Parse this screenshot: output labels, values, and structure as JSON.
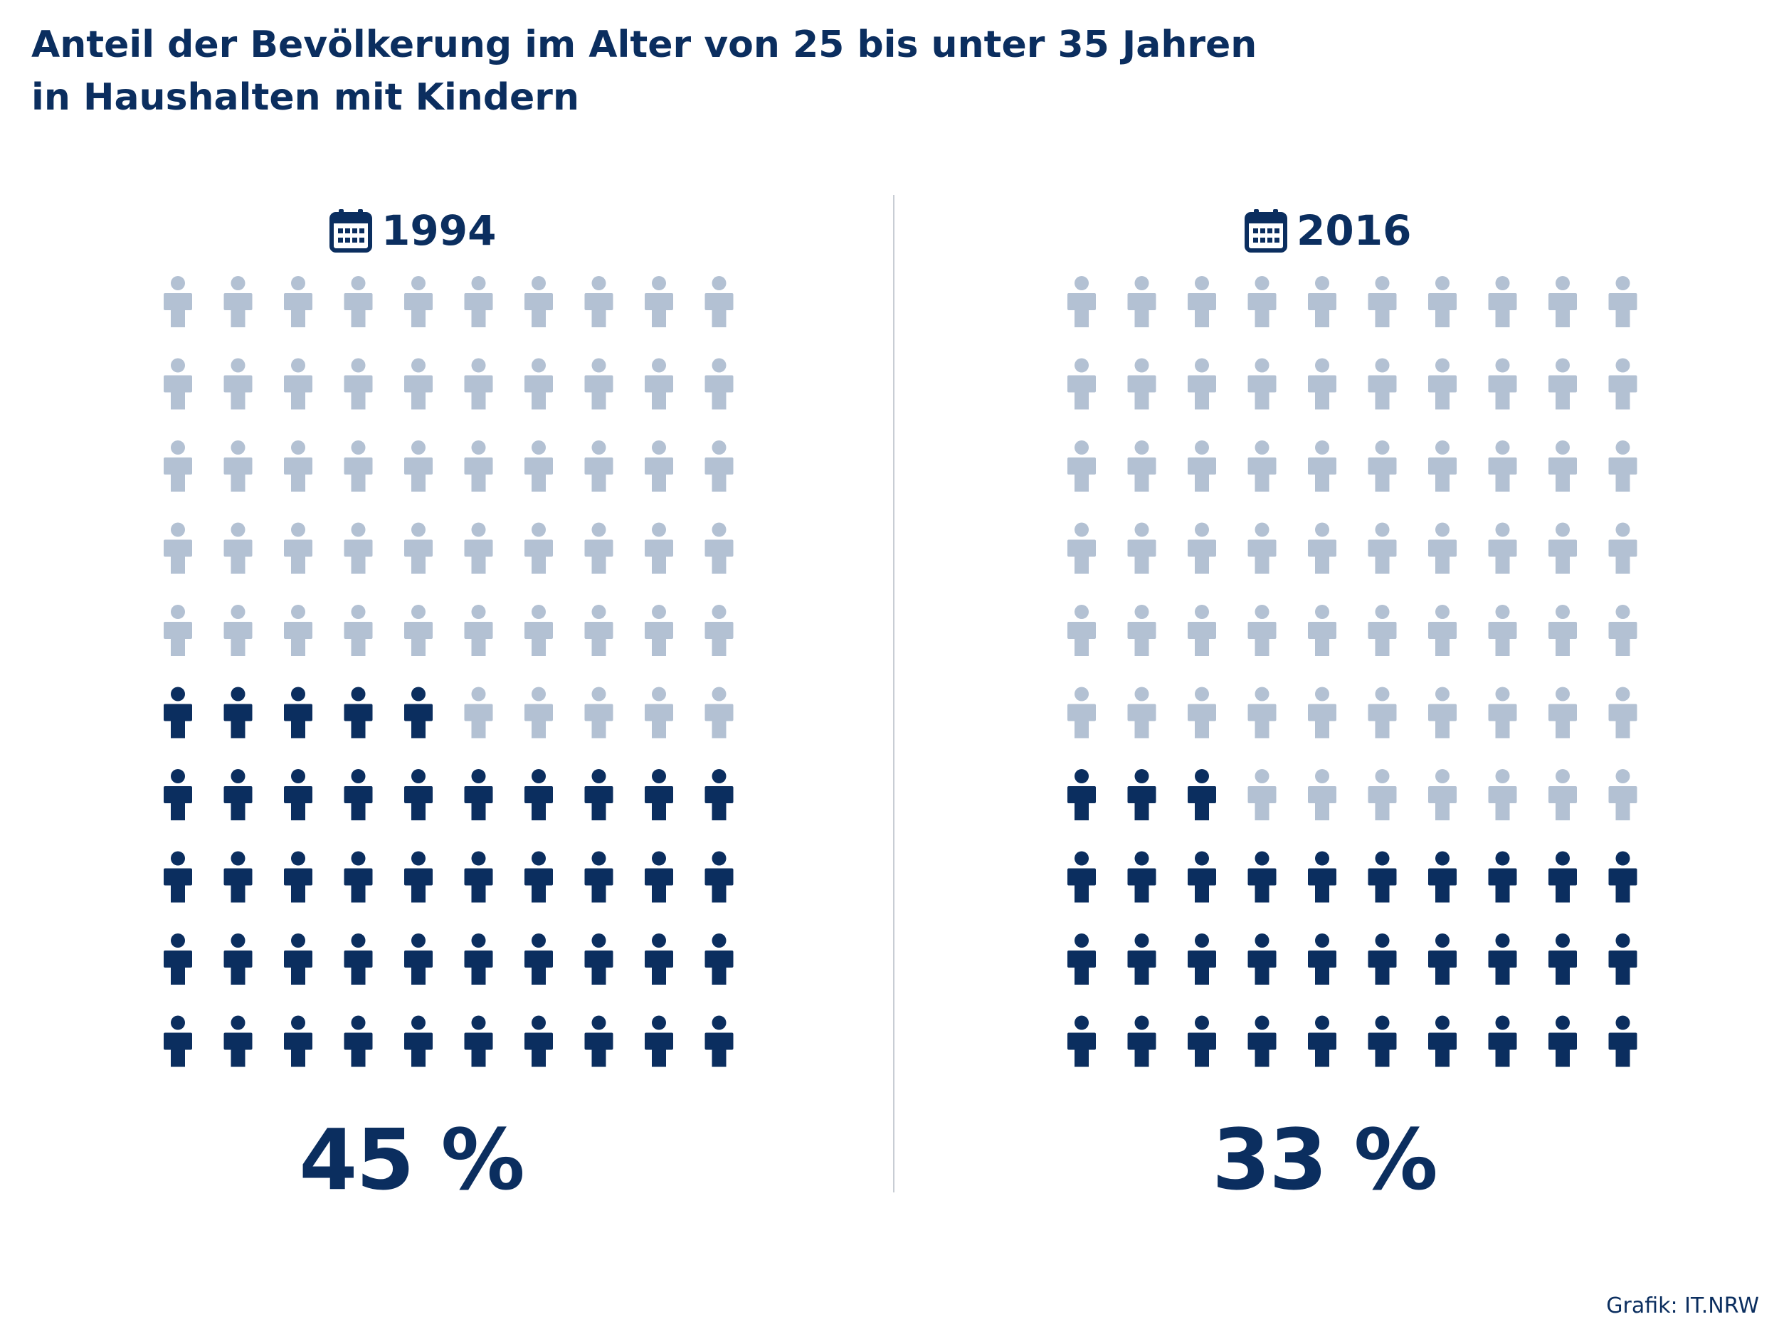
{
  "title_lines": [
    "Anteil der Bevölkerung im Alter von 25 bis unter 35 Jahren",
    "in Haushalten mit Kindern"
  ],
  "source": "Grafik: IT.NRW",
  "colors": {
    "highlight": "#0b2e5f",
    "base": "#b3c1d3"
  },
  "icons": {
    "year": "calendar-icon",
    "unit": "person-icon"
  },
  "chart_data": [
    {
      "type": "pictogram",
      "year_label": "1994",
      "value": 45,
      "total": 100,
      "value_label": "45 %",
      "rows": 10,
      "columns": 10
    },
    {
      "type": "pictogram",
      "year_label": "2016",
      "value": 33,
      "total": 100,
      "value_label": "33 %",
      "rows": 10,
      "columns": 10
    }
  ]
}
